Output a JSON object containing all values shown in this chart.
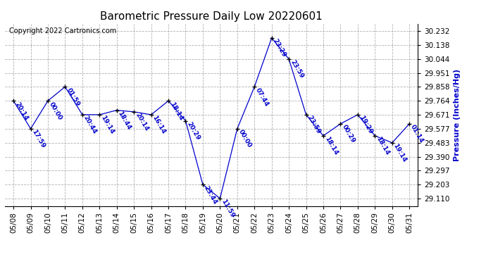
{
  "title": "Barometric Pressure Daily Low 20220601",
  "ylabel": "Pressure (Inches/Hg)",
  "copyright": "Copyright 2022 Cartronics.com",
  "line_color": "#0000cc",
  "marker_color": "#000000",
  "background_color": "#ffffff",
  "grid_color": "#b0b0b0",
  "dates": [
    "05/08",
    "05/09",
    "05/10",
    "05/11",
    "05/12",
    "05/13",
    "05/14",
    "05/15",
    "05/16",
    "05/17",
    "05/18",
    "05/19",
    "05/20",
    "05/21",
    "05/22",
    "05/23",
    "05/24",
    "05/25",
    "05/26",
    "05/27",
    "05/28",
    "05/29",
    "05/30",
    "05/31"
  ],
  "values": [
    29.764,
    29.577,
    29.764,
    29.858,
    29.671,
    29.671,
    29.701,
    29.69,
    29.671,
    29.764,
    29.63,
    29.203,
    29.11,
    29.577,
    29.858,
    30.185,
    30.044,
    29.671,
    29.53,
    29.61,
    29.671,
    29.53,
    29.483,
    29.61
  ],
  "times": [
    "20:14",
    "17:59",
    "00:00",
    "01:59",
    "20:44",
    "19:14",
    "18:44",
    "20:14",
    "16:14",
    "18:14",
    "20:29",
    "23:44",
    "11:59",
    "00:00",
    "07:44",
    "23:29",
    "23:59",
    "23:59",
    "18:14",
    "00:29",
    "19:29",
    "18:14",
    "19:14",
    "01:14"
  ],
  "yticks": [
    29.11,
    29.203,
    29.297,
    29.39,
    29.483,
    29.577,
    29.671,
    29.764,
    29.858,
    29.951,
    30.044,
    30.138,
    30.232
  ],
  "ylim_min": 29.06,
  "ylim_max": 30.28,
  "title_fontsize": 11,
  "label_fontsize": 8,
  "tick_fontsize": 7.5,
  "annotation_fontsize": 6.5
}
